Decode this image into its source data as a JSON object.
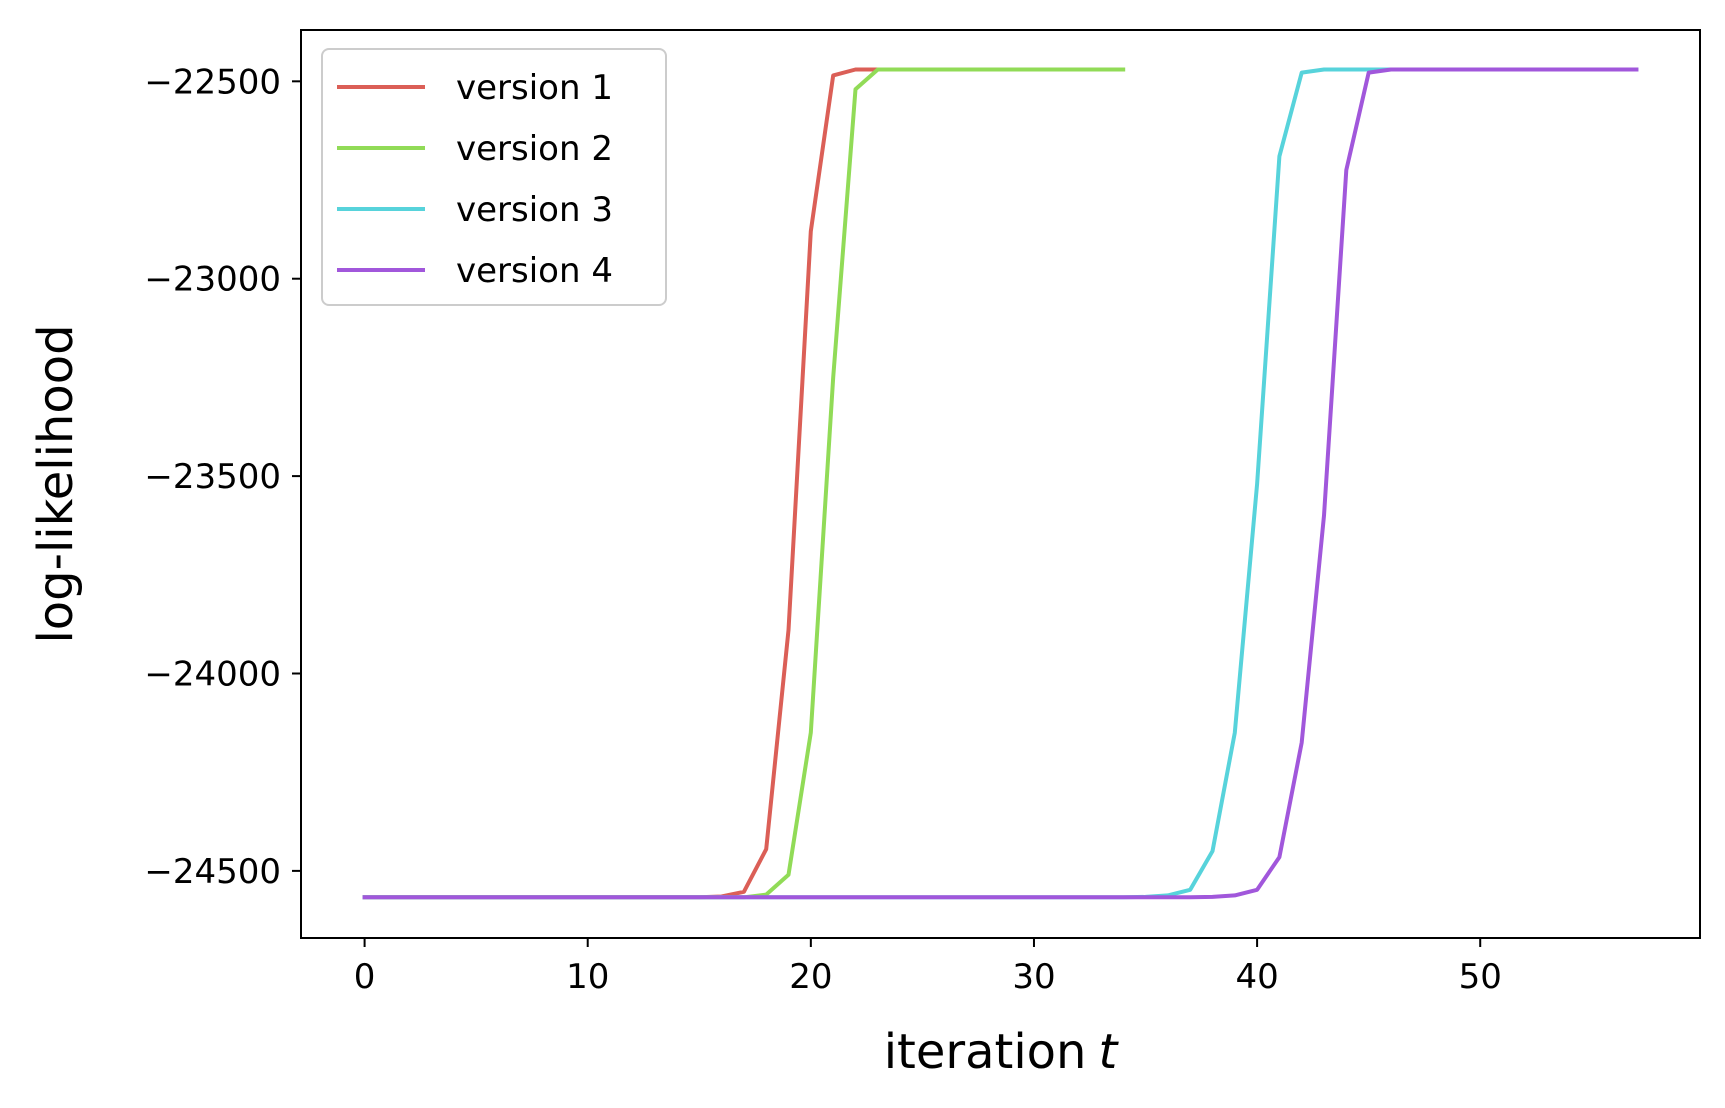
{
  "chart_data": {
    "type": "line",
    "xlabel": "iteration",
    "xlabel_var": "t",
    "ylabel": "log-likelihood",
    "xlim": [
      -2.85,
      59.85
    ],
    "ylim": [
      -24670,
      -22370
    ],
    "x_ticks": [
      0,
      10,
      20,
      30,
      40,
      50
    ],
    "x_tick_labels": [
      "0",
      "10",
      "20",
      "30",
      "40",
      "50"
    ],
    "y_ticks": [
      -22500,
      -23000,
      -23500,
      -24000,
      -24500
    ],
    "y_tick_labels": [
      "−22500",
      "−23000",
      "−23500",
      "−24000",
      "−24500"
    ],
    "grid": false,
    "legend_position": "top-left",
    "series": [
      {
        "name": "version 1",
        "color": "#db5f57",
        "x": [
          0,
          15,
          16,
          17,
          18,
          19,
          20,
          21,
          22,
          23,
          24,
          25,
          30,
          32
        ],
        "y": [
          -24567,
          -24567,
          -24565,
          -24553,
          -24445,
          -23890,
          -22880,
          -22485,
          -22470,
          -22470,
          -22470,
          -22470,
          -22470,
          -22470
        ]
      },
      {
        "name": "version 2",
        "color": "#91db57",
        "x": [
          0,
          17,
          18,
          19,
          20,
          21,
          22,
          23,
          24,
          28,
          34
        ],
        "y": [
          -24567,
          -24567,
          -24560,
          -24510,
          -24150,
          -23250,
          -22520,
          -22470,
          -22470,
          -22470,
          -22470
        ]
      },
      {
        "name": "version 3",
        "color": "#57d3db",
        "x": [
          0,
          34,
          35,
          36,
          37,
          38,
          39,
          40,
          41,
          42,
          43,
          44,
          45,
          50,
          57
        ],
        "y": [
          -24567,
          -24567,
          -24566,
          -24562,
          -24548,
          -24450,
          -24150,
          -23520,
          -22690,
          -22478,
          -22470,
          -22470,
          -22470,
          -22470,
          -22470
        ]
      },
      {
        "name": "version 4",
        "color": "#a157db",
        "x": [
          0,
          37,
          38,
          39,
          40,
          41,
          42,
          43,
          44,
          45,
          46,
          50,
          57
        ],
        "y": [
          -24567,
          -24567,
          -24566,
          -24562,
          -24548,
          -24465,
          -24175,
          -23600,
          -22725,
          -22478,
          -22470,
          -22470,
          -22470
        ]
      }
    ]
  }
}
